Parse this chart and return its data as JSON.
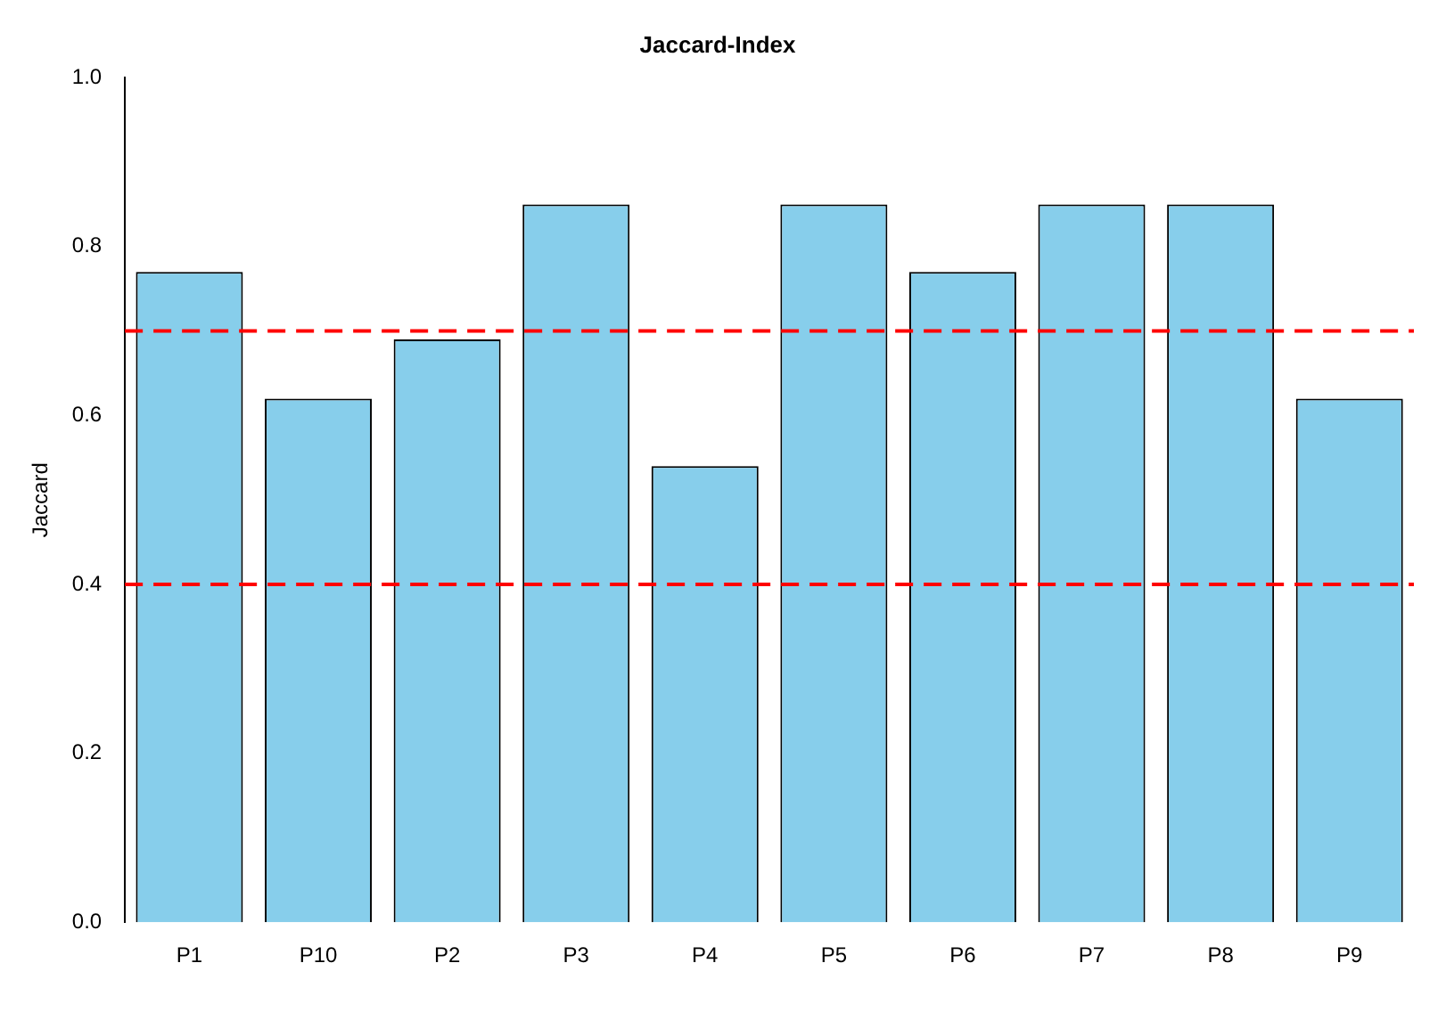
{
  "chart_data": {
    "type": "bar",
    "title": "Jaccard-Index",
    "ylabel": "Jaccard",
    "categories": [
      "P1",
      "P10",
      "P2",
      "P3",
      "P4",
      "P5",
      "P6",
      "P7",
      "P8",
      "P9"
    ],
    "values": [
      0.77,
      0.62,
      0.69,
      0.85,
      0.54,
      0.85,
      0.77,
      0.85,
      0.85,
      0.62
    ],
    "color": "#87ceeb",
    "ylim": [
      0,
      1
    ],
    "yticks": [
      {
        "value": 0,
        "label": "0.0"
      },
      0.2,
      0.4,
      0.6,
      0.8,
      {
        "value": 1,
        "label": "1.0"
      }
    ],
    "ref_lines": [
      {
        "axis": "y",
        "value": 0.7,
        "color": "#ff0000",
        "line_style": "dashed"
      },
      {
        "axis": "y",
        "value": 0.4,
        "color": "#ff0000",
        "line_style": "dashed"
      }
    ],
    "grid": false,
    "legend": false
  }
}
